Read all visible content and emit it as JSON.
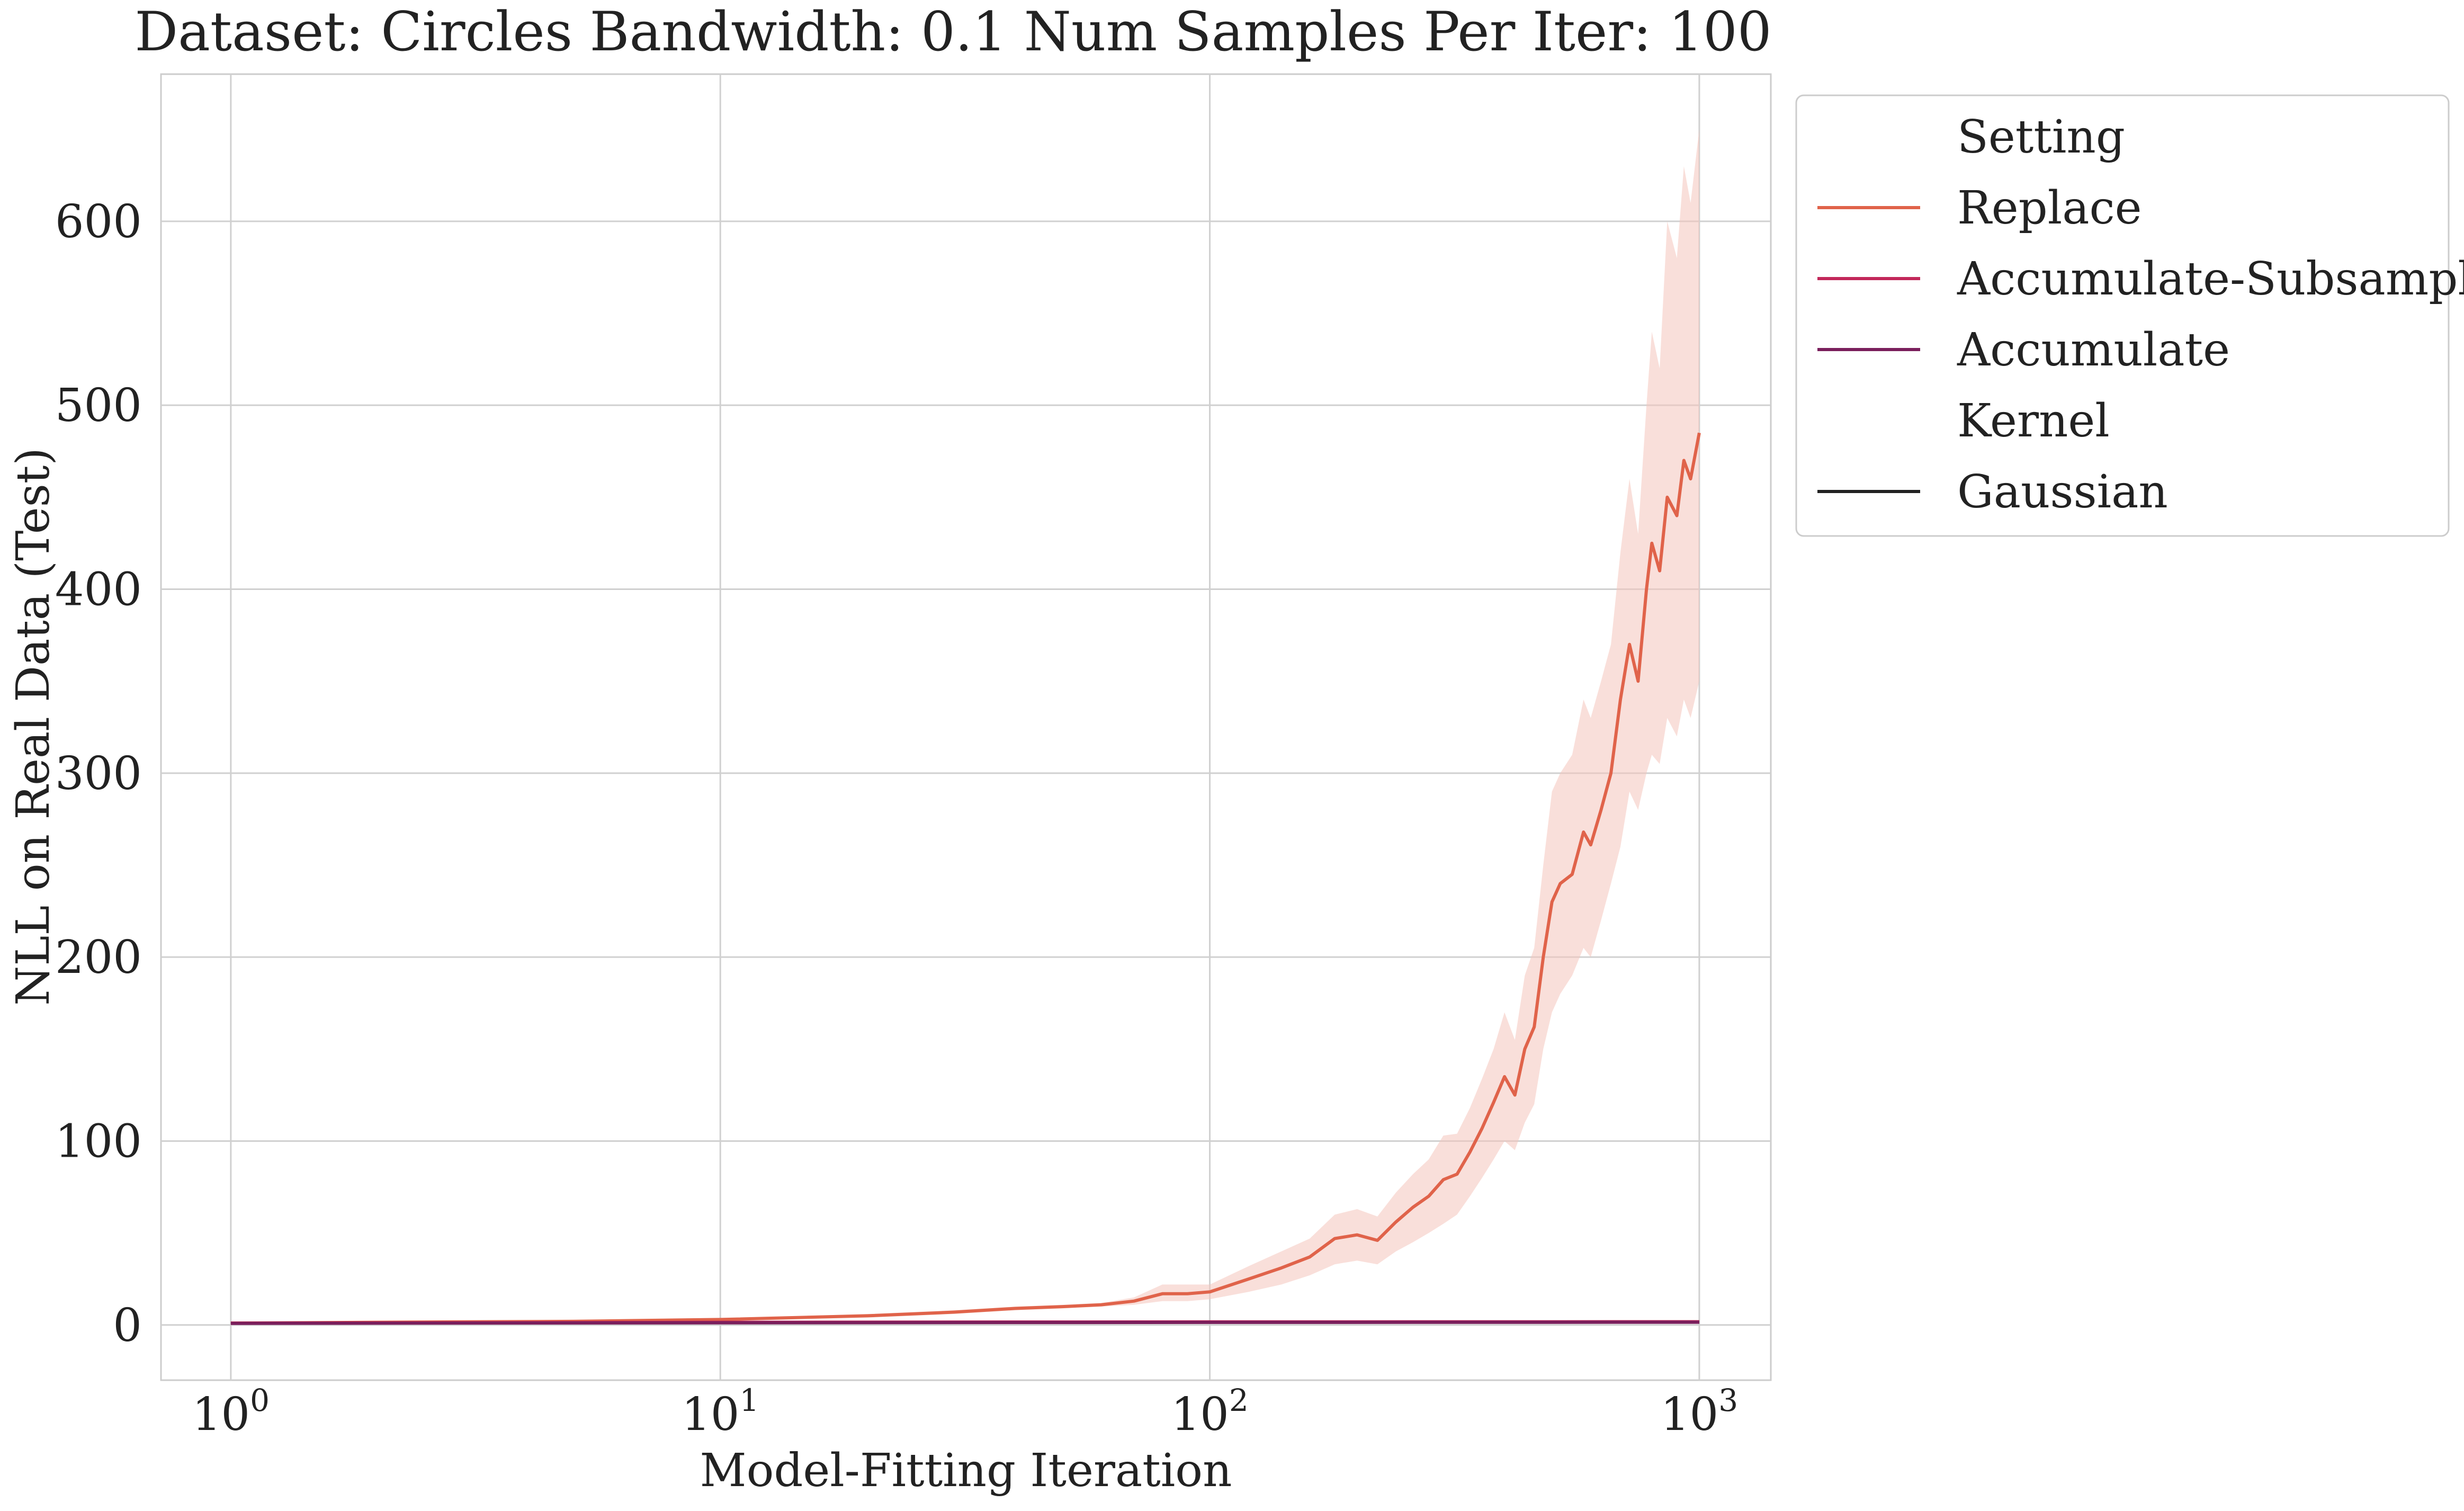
{
  "chart_data": {
    "type": "line",
    "title": "Dataset: Circles Bandwidth: 0.1 Num Samples Per Iter: 100",
    "xlabel": "Model-Fitting Iteration",
    "ylabel": "NLL on Real Data (Test)",
    "xscale": "log",
    "xlim": [
      0.72,
      1400
    ],
    "ylim": [
      -30,
      680
    ],
    "grid": true,
    "x_ticks": [
      {
        "value": 1,
        "base": "10",
        "exp": "0"
      },
      {
        "value": 10,
        "base": "10",
        "exp": "1"
      },
      {
        "value": 100,
        "base": "10",
        "exp": "2"
      },
      {
        "value": 1000,
        "base": "10",
        "exp": "3"
      }
    ],
    "y_ticks": [
      {
        "value": 0,
        "label": "0"
      },
      {
        "value": 100,
        "label": "100"
      },
      {
        "value": 200,
        "label": "200"
      },
      {
        "value": 300,
        "label": "300"
      },
      {
        "value": 400,
        "label": "400"
      },
      {
        "value": 500,
        "label": "500"
      },
      {
        "value": 600,
        "label": "600"
      }
    ],
    "legend": {
      "placement": "outside upper right",
      "entries": [
        {
          "label": "Setting",
          "kind": "header"
        },
        {
          "label": "Replace",
          "kind": "line",
          "color": "#e0634a"
        },
        {
          "label": "Accumulate-Subsample",
          "kind": "line",
          "color": "#c2285a"
        },
        {
          "label": "Accumulate",
          "kind": "line",
          "color": "#7a1f5c"
        },
        {
          "label": "Kernel",
          "kind": "header"
        },
        {
          "label": "Gaussian",
          "kind": "line",
          "color": "#222222"
        }
      ]
    },
    "series": [
      {
        "name": "Replace",
        "color": "#e0634a",
        "band_color": "#f4c5bc",
        "x": [
          1,
          2,
          5,
          10,
          20,
          30,
          40,
          50,
          60,
          70,
          80,
          90,
          100,
          120,
          140,
          160,
          180,
          200,
          220,
          240,
          260,
          280,
          300,
          320,
          340,
          360,
          380,
          400,
          420,
          440,
          460,
          480,
          500,
          520,
          550,
          580,
          600,
          630,
          660,
          690,
          720,
          750,
          780,
          800,
          830,
          860,
          900,
          930,
          960,
          1000
        ],
        "y": [
          1,
          1.5,
          2,
          3,
          5,
          7,
          9,
          10,
          11,
          13,
          17,
          17,
          18,
          25,
          31,
          37,
          47,
          49,
          46,
          56,
          64,
          70,
          79,
          82,
          94,
          107,
          121,
          135,
          125,
          150,
          162,
          200,
          230,
          240,
          245,
          268,
          261,
          280,
          300,
          340,
          370,
          350,
          400,
          425,
          410,
          450,
          440,
          470,
          460,
          485
        ],
        "lower": [
          0.5,
          1,
          1.5,
          2.5,
          4,
          6,
          8,
          9,
          10,
          11,
          13,
          13,
          14,
          18,
          22,
          27,
          33,
          35,
          33,
          40,
          45,
          50,
          55,
          60,
          70,
          80,
          90,
          100,
          95,
          110,
          120,
          150,
          170,
          180,
          190,
          205,
          200,
          220,
          240,
          260,
          290,
          280,
          300,
          310,
          305,
          330,
          320,
          340,
          330,
          350
        ],
        "upper": [
          1.5,
          2,
          2.5,
          3.5,
          6,
          8,
          10,
          11,
          12,
          15,
          22,
          22,
          22,
          32,
          40,
          47,
          60,
          63,
          59,
          72,
          82,
          90,
          103,
          104,
          118,
          134,
          150,
          170,
          155,
          190,
          205,
          250,
          290,
          300,
          310,
          340,
          330,
          350,
          370,
          420,
          460,
          430,
          500,
          540,
          520,
          600,
          580,
          630,
          610,
          650
        ]
      },
      {
        "name": "Accumulate-Subsample",
        "color": "#c2285a",
        "band_color": "#e9a3b9",
        "x": [
          1,
          10,
          100,
          1000
        ],
        "y": [
          1.0,
          1.5,
          1.7,
          1.8
        ],
        "lower": [
          0.6,
          1.1,
          1.3,
          1.4
        ],
        "upper": [
          1.4,
          1.9,
          2.1,
          2.2
        ]
      },
      {
        "name": "Accumulate",
        "color": "#7a1f5c",
        "band_color": "#c9a0bb",
        "x": [
          1,
          10,
          100,
          1000
        ],
        "y": [
          0.9,
          1.2,
          1.4,
          1.5
        ],
        "lower": [
          0.6,
          0.9,
          1.1,
          1.2
        ],
        "upper": [
          1.2,
          1.5,
          1.7,
          1.8
        ]
      }
    ]
  }
}
